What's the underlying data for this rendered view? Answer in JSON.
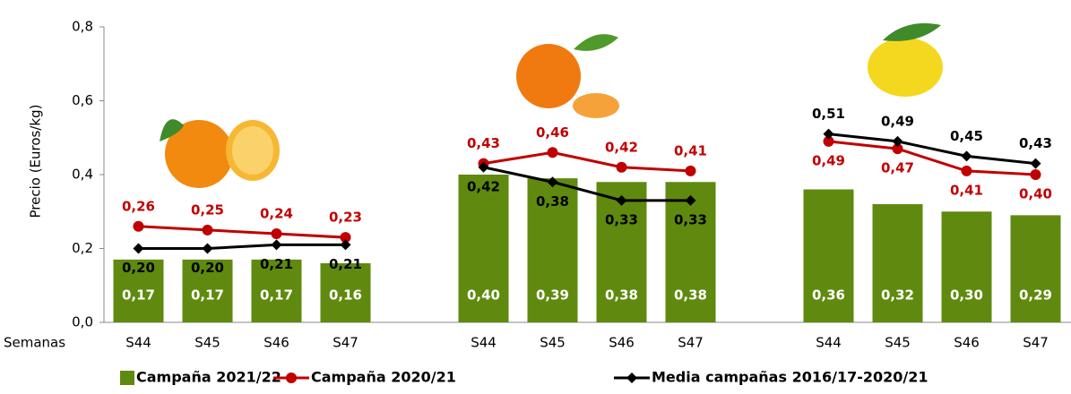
{
  "chart_data": {
    "type": "bar-line",
    "y_label": "Precio (Euros/kg)",
    "x_label": "Semanas",
    "categories": [
      "S44",
      "S45",
      "S46",
      "S47",
      null,
      "S44",
      "S45",
      "S46",
      "S47",
      null,
      "S44",
      "S45",
      "S46",
      "S47"
    ],
    "ylim": [
      0,
      0.8
    ],
    "yticks": [
      {
        "value": 0,
        "label": "0,0"
      },
      {
        "value": 0.2,
        "label": "0,2"
      },
      {
        "value": 0.4,
        "label": "0,4"
      },
      {
        "value": 0.6,
        "label": "0,6"
      },
      {
        "value": 0.8,
        "label": "0,8"
      }
    ],
    "series": [
      {
        "name": "Campaña 2021/22",
        "kind": "bar",
        "color": "#5f8a0f",
        "values": [
          0.17,
          0.17,
          0.17,
          0.16,
          null,
          0.4,
          0.39,
          0.38,
          0.38,
          null,
          0.36,
          0.32,
          0.3,
          0.29
        ],
        "value_labels": [
          "0,17",
          "0,17",
          "0,17",
          "0,16",
          null,
          "0,40",
          "0,39",
          "0,38",
          "0,38",
          null,
          "0,36",
          "0,32",
          "0,30",
          "0,29"
        ]
      },
      {
        "name": "Campaña 2020/21",
        "kind": "line",
        "marker": "circle",
        "color": "#c00000",
        "values": [
          0.26,
          0.25,
          0.24,
          0.23,
          null,
          0.43,
          0.46,
          0.42,
          0.41,
          null,
          0.49,
          0.47,
          0.41,
          0.4
        ],
        "value_labels": [
          "0,26",
          "0,25",
          "0,24",
          "0,23",
          null,
          "0,43",
          "0,46",
          "0,42",
          "0,41",
          null,
          "0,49",
          "0,47",
          "0,41",
          "0,40"
        ]
      },
      {
        "name": "Media campañas 2016/17-2020/21",
        "kind": "line",
        "marker": "diamond",
        "color": "#000000",
        "values": [
          0.2,
          0.2,
          0.21,
          0.21,
          null,
          0.42,
          0.38,
          0.33,
          0.33,
          null,
          0.51,
          0.49,
          0.45,
          0.43
        ],
        "value_labels": [
          "0,20",
          "0,20",
          "0,21",
          "0,21",
          null,
          "0,42",
          "0,38",
          "0,33",
          "0,33",
          null,
          "0,51",
          "0,49",
          "0,45",
          "0,43"
        ]
      }
    ]
  }
}
